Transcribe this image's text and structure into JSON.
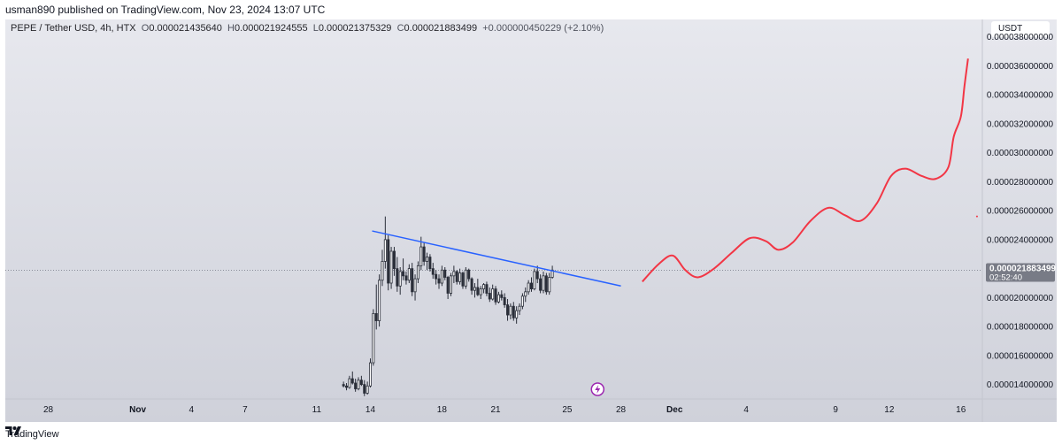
{
  "header": {
    "published_line": "usman890 published on TradingView.com, Nov 23, 2024 13:07 UTC"
  },
  "legend": {
    "symbol": "PEPE / Tether USD, 4h, HTX",
    "open_label": "O",
    "open": "0.000021435640",
    "high_label": "H",
    "high": "0.000021924555",
    "low_label": "L",
    "low": "0.000021375329",
    "close_label": "C",
    "close": "0.000021883499",
    "change": "+0.000000450229 (+2.10%)"
  },
  "currency_button": "USDT",
  "price_tag": {
    "price": "0.000021883499",
    "countdown": "02:52:40"
  },
  "footer": {
    "brand": "TradingView"
  },
  "icons": {
    "brand_logo": "tradingview-logo-icon",
    "flash": "lightning-icon"
  },
  "colors": {
    "trendline": "#2962ff",
    "projection": "#f23645",
    "price_tag": "#787b86"
  },
  "chart_data": {
    "type": "candlestick",
    "y_ticks": [
      "0.000014000000",
      "0.000016000000",
      "0.000018000000",
      "0.000020000000",
      "0.000022000000",
      "0.000024000000",
      "0.000026000000",
      "0.000028000000",
      "0.000030000000",
      "0.000032000000",
      "0.000034000000",
      "0.000036000000",
      "0.000038000000"
    ],
    "y_tick_values": [
      14.0,
      16.0,
      18.0,
      20.0,
      22.0,
      24.0,
      26.0,
      28.0,
      30.0,
      32.0,
      34.0,
      36.0,
      38.0
    ],
    "y_unit_scale": "1e-6 USDT",
    "ylim": [
      13.0,
      39.2
    ],
    "x_ticks": [
      {
        "label": "28",
        "day": -4,
        "bold": false
      },
      {
        "label": "Nov",
        "day": 1,
        "bold": true
      },
      {
        "label": "4",
        "day": 4,
        "bold": false
      },
      {
        "label": "7",
        "day": 7,
        "bold": false
      },
      {
        "label": "11",
        "day": 11,
        "bold": false
      },
      {
        "label": "14",
        "day": 14,
        "bold": false
      },
      {
        "label": "18",
        "day": 18,
        "bold": false
      },
      {
        "label": "21",
        "day": 21,
        "bold": false
      },
      {
        "label": "25",
        "day": 25,
        "bold": false
      },
      {
        "label": "28",
        "day": 28,
        "bold": false
      },
      {
        "label": "Dec",
        "day": 31,
        "bold": true
      },
      {
        "label": "4",
        "day": 35,
        "bold": false
      },
      {
        "label": "9",
        "day": 40,
        "bold": false
      },
      {
        "label": "12",
        "day": 43,
        "bold": false
      },
      {
        "label": "16",
        "day": 47,
        "bold": false
      }
    ],
    "x_range_days": [
      -6.4,
      48.2
    ],
    "candles_start_day": 12.5,
    "candle_interval_days": 0.1667,
    "candles": [
      [
        14.0,
        14.2,
        13.8,
        13.9
      ],
      [
        13.9,
        14.1,
        13.6,
        13.8
      ],
      [
        13.8,
        14.6,
        13.7,
        14.4
      ],
      [
        14.4,
        14.9,
        14.0,
        14.1
      ],
      [
        14.1,
        14.4,
        13.5,
        13.7
      ],
      [
        13.7,
        14.5,
        13.6,
        14.3
      ],
      [
        14.3,
        14.6,
        13.9,
        14.0
      ],
      [
        14.0,
        14.3,
        13.2,
        13.4
      ],
      [
        13.4,
        14.2,
        13.3,
        13.9
      ],
      [
        13.9,
        15.8,
        13.8,
        15.5
      ],
      [
        15.5,
        19.2,
        15.3,
        18.9
      ],
      [
        18.9,
        20.9,
        17.8,
        18.4
      ],
      [
        18.4,
        21.6,
        18.0,
        21.2
      ],
      [
        21.2,
        23.3,
        20.8,
        22.5
      ],
      [
        22.5,
        25.6,
        22.0,
        24.0
      ],
      [
        24.0,
        24.3,
        20.5,
        21.0
      ],
      [
        21.0,
        23.5,
        20.6,
        23.2
      ],
      [
        23.2,
        23.5,
        21.5,
        22.0
      ],
      [
        22.0,
        22.8,
        20.4,
        20.8
      ],
      [
        20.8,
        22.1,
        20.2,
        21.8
      ],
      [
        21.8,
        22.7,
        21.2,
        21.5
      ],
      [
        21.5,
        21.8,
        20.9,
        21.2
      ],
      [
        21.2,
        22.3,
        21.0,
        22.0
      ],
      [
        22.0,
        22.4,
        20.1,
        20.4
      ],
      [
        20.4,
        21.6,
        19.8,
        21.3
      ],
      [
        21.3,
        22.5,
        21.0,
        22.2
      ],
      [
        22.2,
        24.2,
        21.9,
        23.5
      ],
      [
        23.5,
        23.8,
        22.2,
        22.5
      ],
      [
        22.5,
        23.1,
        21.9,
        22.8
      ],
      [
        22.8,
        23.0,
        21.8,
        22.0
      ],
      [
        22.0,
        22.4,
        21.3,
        21.6
      ],
      [
        21.6,
        21.9,
        20.9,
        21.3
      ],
      [
        21.3,
        21.6,
        20.6,
        21.0
      ],
      [
        21.0,
        22.2,
        20.8,
        21.9
      ],
      [
        21.9,
        22.1,
        21.2,
        21.4
      ],
      [
        21.4,
        21.5,
        19.9,
        20.3
      ],
      [
        20.3,
        21.7,
        20.1,
        21.5
      ],
      [
        21.5,
        22.2,
        21.0,
        21.8
      ],
      [
        21.8,
        21.9,
        20.9,
        21.1
      ],
      [
        21.1,
        22.0,
        20.9,
        21.7
      ],
      [
        21.7,
        21.8,
        20.6,
        20.8
      ],
      [
        20.8,
        22.1,
        20.6,
        21.9
      ],
      [
        21.9,
        22.0,
        21.1,
        21.3
      ],
      [
        21.3,
        21.4,
        20.2,
        20.5
      ],
      [
        20.5,
        21.0,
        20.0,
        20.7
      ],
      [
        20.7,
        21.3,
        20.1,
        20.2
      ],
      [
        20.2,
        20.8,
        19.9,
        20.6
      ],
      [
        20.6,
        21.0,
        20.3,
        20.9
      ],
      [
        20.9,
        21.1,
        20.1,
        20.3
      ],
      [
        20.3,
        20.7,
        19.7,
        19.9
      ],
      [
        19.9,
        20.9,
        19.8,
        20.6
      ],
      [
        20.6,
        20.8,
        19.5,
        19.7
      ],
      [
        19.7,
        20.4,
        19.6,
        20.2
      ],
      [
        20.2,
        20.5,
        19.8,
        20.0
      ],
      [
        20.0,
        20.3,
        19.3,
        19.5
      ],
      [
        19.5,
        19.9,
        18.4,
        18.8
      ],
      [
        18.8,
        19.6,
        18.5,
        19.4
      ],
      [
        19.4,
        19.7,
        18.4,
        18.6
      ],
      [
        18.6,
        19.4,
        18.2,
        19.1
      ],
      [
        19.1,
        19.6,
        18.8,
        19.4
      ],
      [
        19.4,
        20.3,
        19.2,
        20.1
      ],
      [
        20.1,
        20.7,
        19.7,
        20.4
      ],
      [
        20.4,
        21.2,
        20.2,
        21.0
      ],
      [
        21.0,
        21.4,
        20.4,
        20.6
      ],
      [
        20.6,
        22.0,
        20.5,
        21.8
      ],
      [
        21.8,
        22.2,
        21.0,
        21.3
      ],
      [
        21.3,
        21.6,
        20.3,
        20.5
      ],
      [
        20.5,
        21.8,
        20.3,
        21.5
      ],
      [
        21.5,
        21.7,
        20.2,
        20.4
      ],
      [
        20.4,
        21.7,
        20.2,
        21.4
      ],
      [
        21.4,
        22.2,
        21.3,
        21.9
      ]
    ],
    "trendline": {
      "start": [
        14.1,
        24.6
      ],
      "end": [
        28.0,
        20.8
      ]
    },
    "projection_path": [
      [
        29.2,
        21.1
      ],
      [
        30.1,
        22.3
      ],
      [
        30.9,
        22.9
      ],
      [
        31.6,
        21.9
      ],
      [
        32.3,
        21.4
      ],
      [
        33.2,
        22.0
      ],
      [
        34.2,
        23.1
      ],
      [
        35.2,
        24.1
      ],
      [
        36.1,
        23.9
      ],
      [
        36.8,
        23.3
      ],
      [
        37.6,
        23.8
      ],
      [
        38.6,
        25.3
      ],
      [
        39.6,
        26.2
      ],
      [
        40.5,
        25.7
      ],
      [
        41.4,
        25.3
      ],
      [
        42.3,
        26.5
      ],
      [
        43.1,
        28.4
      ],
      [
        43.9,
        28.9
      ],
      [
        44.8,
        28.4
      ],
      [
        45.6,
        28.2
      ],
      [
        46.3,
        29.0
      ],
      [
        46.6,
        31.1
      ],
      [
        47.0,
        32.5
      ],
      [
        47.2,
        34.6
      ],
      [
        47.4,
        36.5
      ]
    ],
    "projection_dot": [
      47.9,
      25.6
    ],
    "last_price_line": 21.883499
  }
}
